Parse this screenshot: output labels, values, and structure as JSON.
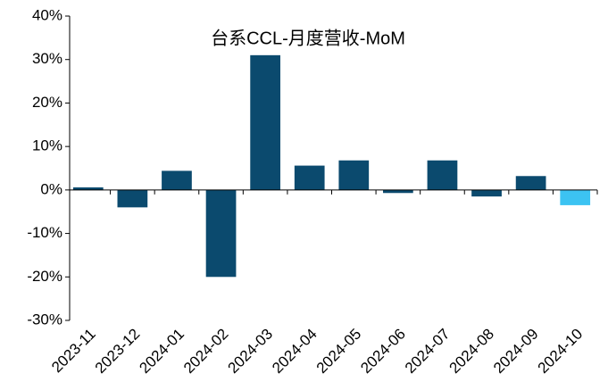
{
  "chart_data": {
    "type": "bar",
    "title": "台系CCL-月度营收-MoM",
    "categories": [
      "2023-11",
      "2023-12",
      "2024-01",
      "2024-02",
      "2024-03",
      "2024-04",
      "2024-05",
      "2024-06",
      "2024-07",
      "2024-08",
      "2024-09",
      "2024-10"
    ],
    "values": [
      0.6,
      -4,
      4.4,
      -20,
      31,
      5.6,
      6.8,
      -0.7,
      6.8,
      -1.5,
      3.2,
      -3.5
    ],
    "colors": [
      "#0b4a6e",
      "#0b4a6e",
      "#0b4a6e",
      "#0b4a6e",
      "#0b4a6e",
      "#0b4a6e",
      "#0b4a6e",
      "#0b4a6e",
      "#0b4a6e",
      "#0b4a6e",
      "#0b4a6e",
      "#3cc3f2"
    ],
    "ylim": [
      -30,
      40
    ],
    "yticks": [
      {
        "value": -30,
        "label": "-30%"
      },
      {
        "value": -20,
        "label": "-20%"
      },
      {
        "value": -10,
        "label": "-10%"
      },
      {
        "value": 0,
        "label": "0%"
      },
      {
        "value": 10,
        "label": "10%"
      },
      {
        "value": 20,
        "label": "20%"
      },
      {
        "value": 30,
        "label": "30%"
      },
      {
        "value": 40,
        "label": "40%"
      }
    ],
    "grid": false
  }
}
